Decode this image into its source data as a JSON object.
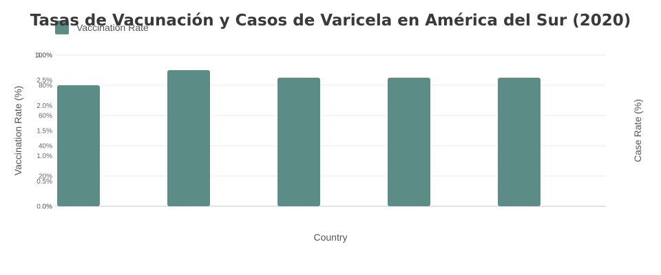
{
  "chart_data": {
    "type": "bar",
    "title": "Tasas de Vacunación y Casos de Varicela en América del Sur (2020)",
    "xlabel": "Country",
    "ylabel": "Vaccination Rate (%)",
    "y2label": "Case Rate (%)",
    "legend": [
      "Vaccination Rate"
    ],
    "legend_position": "top-left",
    "grid": true,
    "categories": [
      "",
      "",
      "",
      "",
      ""
    ],
    "series": [
      {
        "name": "Vaccination Rate",
        "axis": "left",
        "values": [
          80,
          90,
          85,
          85,
          85
        ],
        "color": "#5b8c85"
      }
    ],
    "ylim": [
      0,
      100
    ],
    "y_ticks": [
      "0%",
      "20%",
      "40%",
      "60%",
      "80%",
      "100%"
    ],
    "y2lim": [
      0,
      3
    ],
    "y2_ticks": [
      "0.0%",
      "0.5%",
      "1.0%",
      "1.5%",
      "2.0%",
      "2.5%",
      "3.0%"
    ]
  }
}
